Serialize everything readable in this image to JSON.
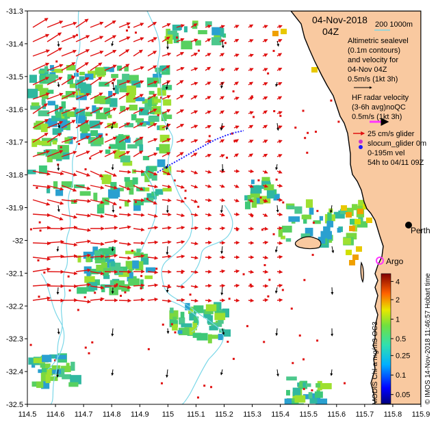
{
  "map": {
    "title_date": "04-Nov-2018",
    "title_time": "04Z",
    "lon_range": [
      114.5,
      115.9
    ],
    "lat_range": [
      -32.5,
      -31.3
    ],
    "x_ticks": [
      "114.5",
      "114.6",
      "114.7",
      "114.8",
      "114.9",
      "115",
      "115.1",
      "115.2",
      "115.3",
      "115.4",
      "115.5",
      "115.6",
      "115.7",
      "115.8",
      "115.9"
    ],
    "y_ticks": [
      "-31.3",
      "-31.4",
      "-31.5",
      "-31.6",
      "-31.7",
      "-31.8",
      "-31.9",
      "-32",
      "-32.1",
      "-32.2",
      "-32.3",
      "-32.4",
      "-32.5"
    ],
    "colors": {
      "land": "#f9c9a0",
      "coast": "#000000",
      "bathymetry": "#7ad7e8",
      "altimetry_arrow": "#e01010",
      "hf_radar_arrow": "#000000",
      "glider_track": "#1a1aff",
      "argo": "#ff33ff"
    }
  },
  "legend": {
    "depth_contours": "200   1000m",
    "altimetry_lines": [
      "Altimetric sealevel",
      "(0.1m contours)",
      "and velocity for",
      "04-Nov 04Z",
      "0.5m/s (1kt 3h)"
    ],
    "hf_radar_lines": [
      "HF radar velocity",
      "(3-6h avg)noQC",
      "0.5m/s (1kt 3h)"
    ],
    "glider_lines": [
      "25 cm/s glider",
      "slocum_glider 0m",
      "0-195m vel",
      "54h to 04/11 09Z"
    ],
    "argo_label": "Argo",
    "city_label": "Perth",
    "colorbar_title": "MODIS Chl-a mg/m3 OC3",
    "colorbar_ticks": [
      "4",
      "2",
      "1",
      "0.5",
      "0.25",
      "0.1",
      "0.05"
    ],
    "credit": "© IMOS 14-Nov-2018 11:46:57 Hobart time"
  }
}
